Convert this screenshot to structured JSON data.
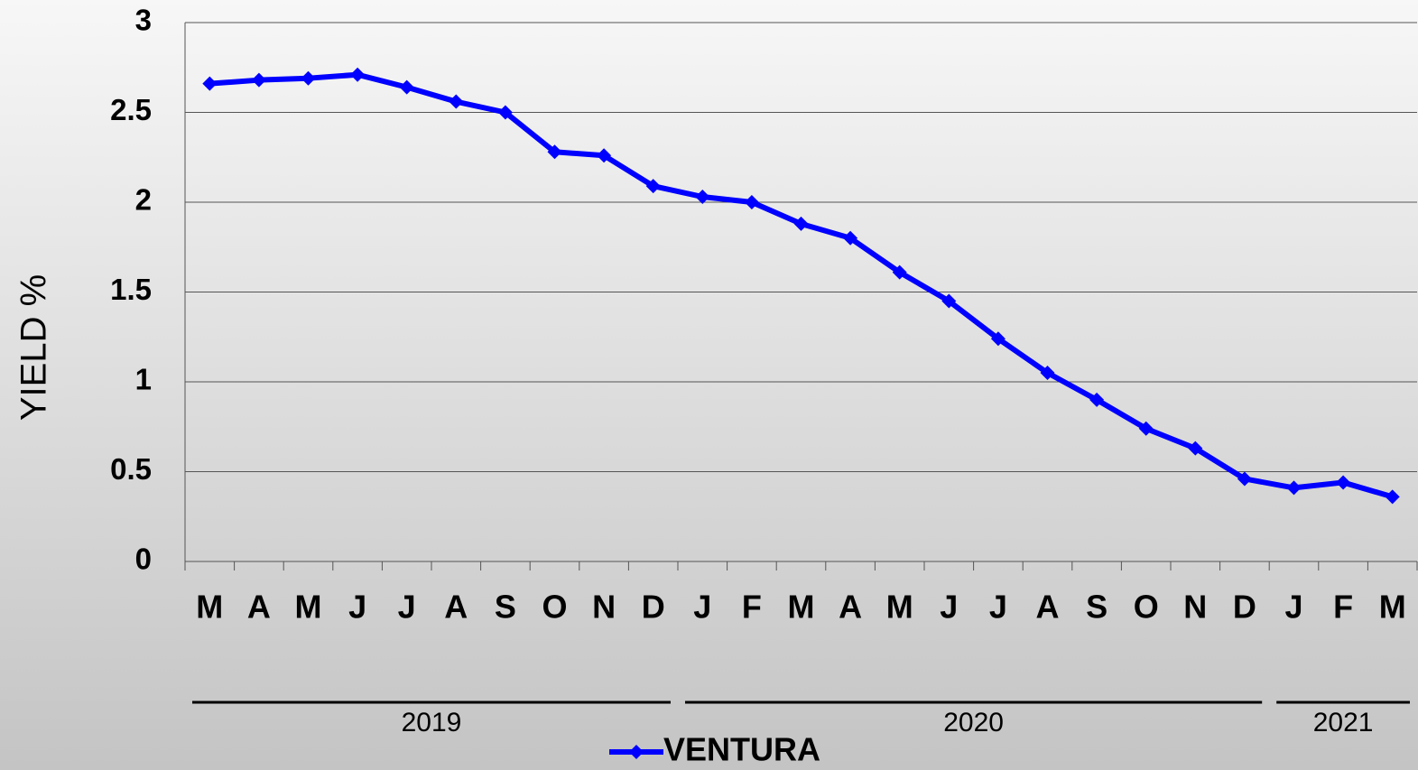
{
  "chart_data": {
    "type": "line",
    "y_label": "YIELD %",
    "categories": [
      "M",
      "A",
      "M",
      "J",
      "J",
      "A",
      "S",
      "O",
      "N",
      "D",
      "J",
      "F",
      "M",
      "A",
      "M",
      "J",
      "J",
      "A",
      "S",
      "O",
      "N",
      "D",
      "J",
      "F",
      "M"
    ],
    "category_groups": [
      {
        "label": "2019",
        "count": 10
      },
      {
        "label": "2020",
        "count": 12
      },
      {
        "label": "2021",
        "count": 3
      }
    ],
    "series": [
      {
        "name": "VENTURA",
        "color": "#0000ff",
        "values": [
          2.66,
          2.68,
          2.69,
          2.71,
          2.64,
          2.56,
          2.5,
          2.28,
          2.26,
          2.09,
          2.03,
          2.0,
          1.88,
          1.8,
          1.61,
          1.45,
          1.24,
          1.05,
          0.9,
          0.74,
          0.63,
          0.46,
          0.41,
          0.44,
          0.36
        ]
      }
    ],
    "ylim": [
      0,
      3
    ],
    "yticks": [
      0,
      0.5,
      1,
      1.5,
      2,
      2.5,
      3
    ],
    "grid": true
  }
}
